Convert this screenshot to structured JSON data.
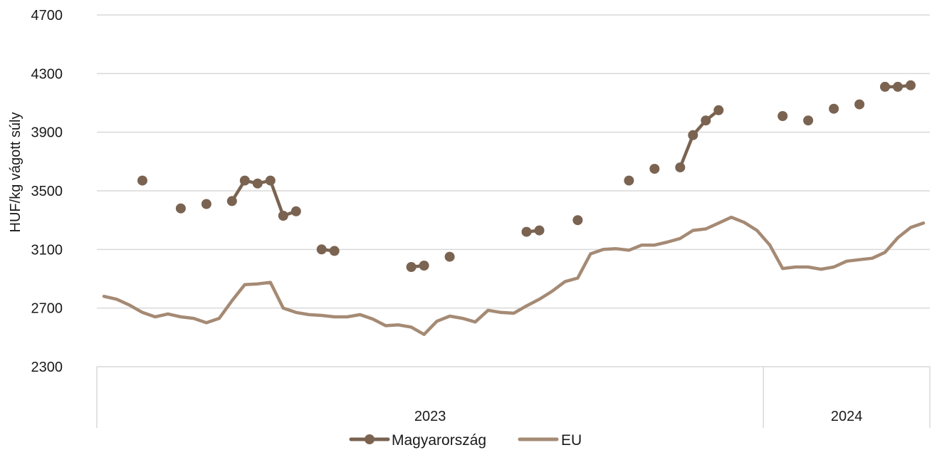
{
  "chart_data": {
    "type": "line",
    "title": "",
    "xlabel": "",
    "ylabel": "HUF/kg vágott súly",
    "ylim": [
      2300,
      4700
    ],
    "yticks": [
      2300,
      2700,
      3100,
      3500,
      3900,
      4300,
      4700
    ],
    "grid": "horizontal",
    "legend_position": "bottom",
    "x_groups": [
      {
        "label": "2023",
        "start": 0,
        "end": 51
      },
      {
        "label": "2024",
        "start": 52,
        "end": 64
      }
    ],
    "x": [
      0,
      1,
      2,
      3,
      4,
      5,
      6,
      7,
      8,
      9,
      10,
      11,
      12,
      13,
      14,
      15,
      16,
      17,
      18,
      19,
      20,
      21,
      22,
      23,
      24,
      25,
      26,
      27,
      28,
      29,
      30,
      31,
      32,
      33,
      34,
      35,
      36,
      37,
      38,
      39,
      40,
      41,
      42,
      43,
      44,
      45,
      46,
      47,
      48,
      49,
      50,
      51,
      52,
      53,
      54,
      55,
      56,
      57,
      58,
      59,
      60,
      61,
      62,
      63,
      64
    ],
    "series": [
      {
        "name": "Magyarország",
        "color": "#7a6351",
        "values": [
          null,
          null,
          null,
          3570,
          null,
          null,
          3380,
          null,
          3410,
          null,
          3430,
          3570,
          3550,
          3570,
          3330,
          3360,
          null,
          3100,
          3090,
          null,
          null,
          null,
          null,
          null,
          2980,
          2990,
          null,
          3050,
          null,
          null,
          null,
          null,
          null,
          3220,
          3230,
          null,
          null,
          3300,
          null,
          null,
          null,
          3570,
          null,
          3650,
          null,
          3660,
          3880,
          3980,
          4050,
          null,
          null,
          null,
          null,
          4010,
          null,
          3980,
          null,
          4060,
          null,
          4090,
          null,
          4210,
          4210,
          4220,
          null
        ]
      },
      {
        "name": "EU",
        "color": "#a58a74",
        "values": [
          2780,
          2760,
          2720,
          2670,
          2640,
          2660,
          2640,
          2630,
          2600,
          2630,
          2750,
          2860,
          2865,
          2875,
          2700,
          2670,
          2655,
          2650,
          2640,
          2640,
          2655,
          2625,
          2580,
          2585,
          2570,
          2520,
          2610,
          2645,
          2630,
          2605,
          2685,
          2670,
          2665,
          2715,
          2760,
          2815,
          2880,
          2905,
          3070,
          3100,
          3105,
          3095,
          3130,
          3130,
          3150,
          3175,
          3230,
          3240,
          3280,
          3320,
          3285,
          3230,
          3130,
          2970,
          2980,
          2980,
          2965,
          2980,
          3020,
          3030,
          3040,
          3080,
          3180,
          3250,
          3280
        ]
      }
    ]
  }
}
